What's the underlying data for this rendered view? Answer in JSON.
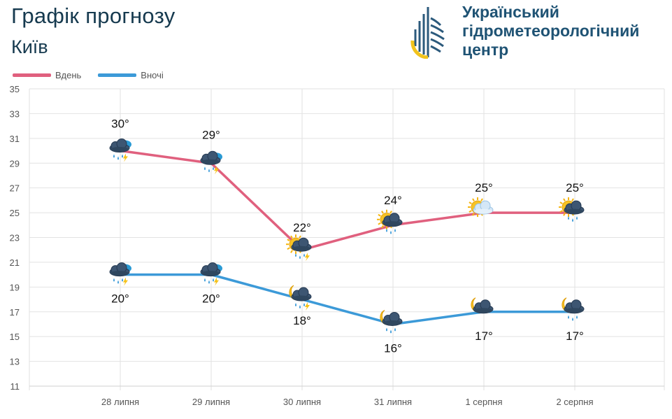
{
  "header": {
    "title": "Графік прогнозу",
    "city": "Київ",
    "org_line1": "Український",
    "org_line2": "гідрометеорологічний",
    "org_line3": "центр"
  },
  "legend": {
    "day_label": "Вдень",
    "night_label": "Вночі"
  },
  "colors": {
    "day": "#e0607e",
    "night": "#3c9ad8",
    "grid": "#e2e2e2",
    "text_dark": "#163a4f",
    "logo_blue": "#2c5a7c",
    "logo_yellow": "#f2c31c"
  },
  "chart_data": {
    "type": "line",
    "categories": [
      "28 липня",
      "29 липня",
      "30 липня",
      "31 липня",
      "1 серпня",
      "2 серпня"
    ],
    "series": [
      {
        "name": "Вдень",
        "values": [
          30,
          29,
          22,
          24,
          25,
          25
        ],
        "labels": [
          "30°",
          "29°",
          "22°",
          "24°",
          "25°",
          "25°"
        ],
        "icons": [
          "thunderstorm-rain-icon",
          "thunderstorm-rain-icon",
          "sun-cloud-thunderstorm-icon",
          "sun-cloud-rain-icon",
          "sun-cloud-icon",
          "sun-cloud-rain-icon"
        ]
      },
      {
        "name": "Вночі",
        "values": [
          20,
          20,
          18,
          16,
          17,
          17
        ],
        "labels": [
          "20°",
          "20°",
          "18°",
          "16°",
          "17°",
          "17°"
        ],
        "icons": [
          "thunderstorm-rain-icon",
          "thunderstorm-rain-icon",
          "moon-cloud-thunderstorm-icon",
          "moon-cloud-rain-icon",
          "moon-cloud-icon",
          "moon-cloud-rain-icon"
        ]
      }
    ],
    "ylim": [
      11,
      35
    ],
    "yticks": [
      11,
      13,
      15,
      17,
      19,
      21,
      23,
      25,
      27,
      29,
      31,
      33,
      35
    ],
    "grid": true,
    "legend_position": "top-left",
    "xlabel": "",
    "ylabel": ""
  }
}
